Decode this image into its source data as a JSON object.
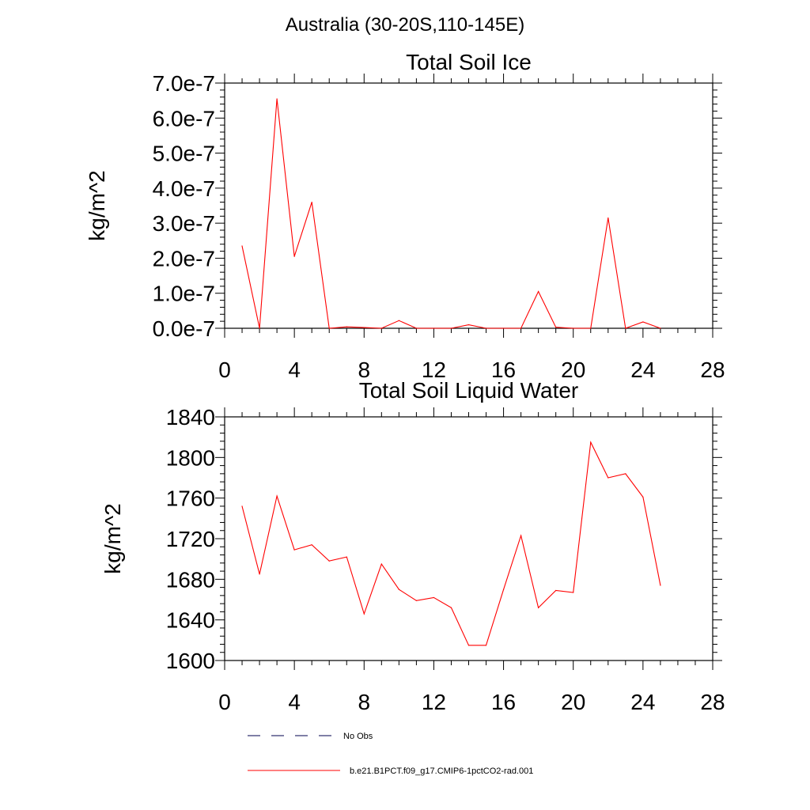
{
  "figure": {
    "suptitle": "Australia (30-20S,110-145E)"
  },
  "chart_data": [
    {
      "type": "line",
      "title": "Total Soil Ice",
      "xlabel": "",
      "ylabel": "kg/m^2",
      "xlim": [
        0,
        28
      ],
      "ylim": [
        0,
        7e-07
      ],
      "xticks": [
        "0",
        "4",
        "8",
        "12",
        "16",
        "20",
        "24",
        "28"
      ],
      "yticks": [
        "0.0e-7",
        "1.0e-7",
        "2.0e-7",
        "3.0e-7",
        "4.0e-7",
        "5.0e-7",
        "6.0e-7",
        "7.0e-7"
      ],
      "grid": false,
      "x": [
        1,
        2,
        3,
        4,
        5,
        6,
        7,
        8,
        9,
        10,
        11,
        12,
        13,
        14,
        15,
        16,
        17,
        18,
        19,
        20,
        21,
        22,
        23,
        24,
        25
      ],
      "series": [
        {
          "name": "b.e21.B1PCT.f09_g17.CMIP6-1pctCO2-rad.001",
          "color": "#ff0000",
          "values": [
            2.35e-07,
            0.0,
            6.55e-07,
            2.05e-07,
            3.6e-07,
            0.0,
            4e-09,
            2e-09,
            0.0,
            2.2e-08,
            0.0,
            0.0,
            0.0,
            1e-08,
            0.0,
            0.0,
            0.0,
            1.05e-07,
            3e-09,
            0.0,
            0.0,
            3.15e-07,
            0.0,
            1.8e-08,
            0.0
          ]
        }
      ]
    },
    {
      "type": "line",
      "title": "Total Soil Liquid Water",
      "xlabel": "",
      "ylabel": "kg/m^2",
      "xlim": [
        0,
        28
      ],
      "ylim": [
        1600,
        1840
      ],
      "xticks": [
        "0",
        "4",
        "8",
        "12",
        "16",
        "20",
        "24",
        "28"
      ],
      "yticks": [
        "1600",
        "1640",
        "1680",
        "1720",
        "1760",
        "1800",
        "1840"
      ],
      "grid": false,
      "x": [
        1,
        2,
        3,
        4,
        5,
        6,
        7,
        8,
        9,
        10,
        11,
        12,
        13,
        14,
        15,
        16,
        17,
        18,
        19,
        20,
        21,
        22,
        23,
        24,
        25
      ],
      "series": [
        {
          "name": "b.e21.B1PCT.f09_g17.CMIP6-1pctCO2-rad.001",
          "color": "#ff0000",
          "values": [
            1752,
            1685,
            1762,
            1709,
            1714,
            1698,
            1702,
            1646,
            1695,
            1670,
            1659,
            1662,
            1652,
            1615,
            1615,
            1670,
            1723,
            1652,
            1669,
            1667,
            1815,
            1780,
            1784,
            1761,
            1674
          ]
        }
      ]
    }
  ],
  "legend": {
    "items": [
      {
        "label": "No Obs",
        "style": "dashed",
        "color": "#00004d"
      },
      {
        "label": "b.e21.B1PCT.f09_g17.CMIP6-1pctCO2-rad.001",
        "style": "solid",
        "color": "#ff0000"
      }
    ]
  }
}
